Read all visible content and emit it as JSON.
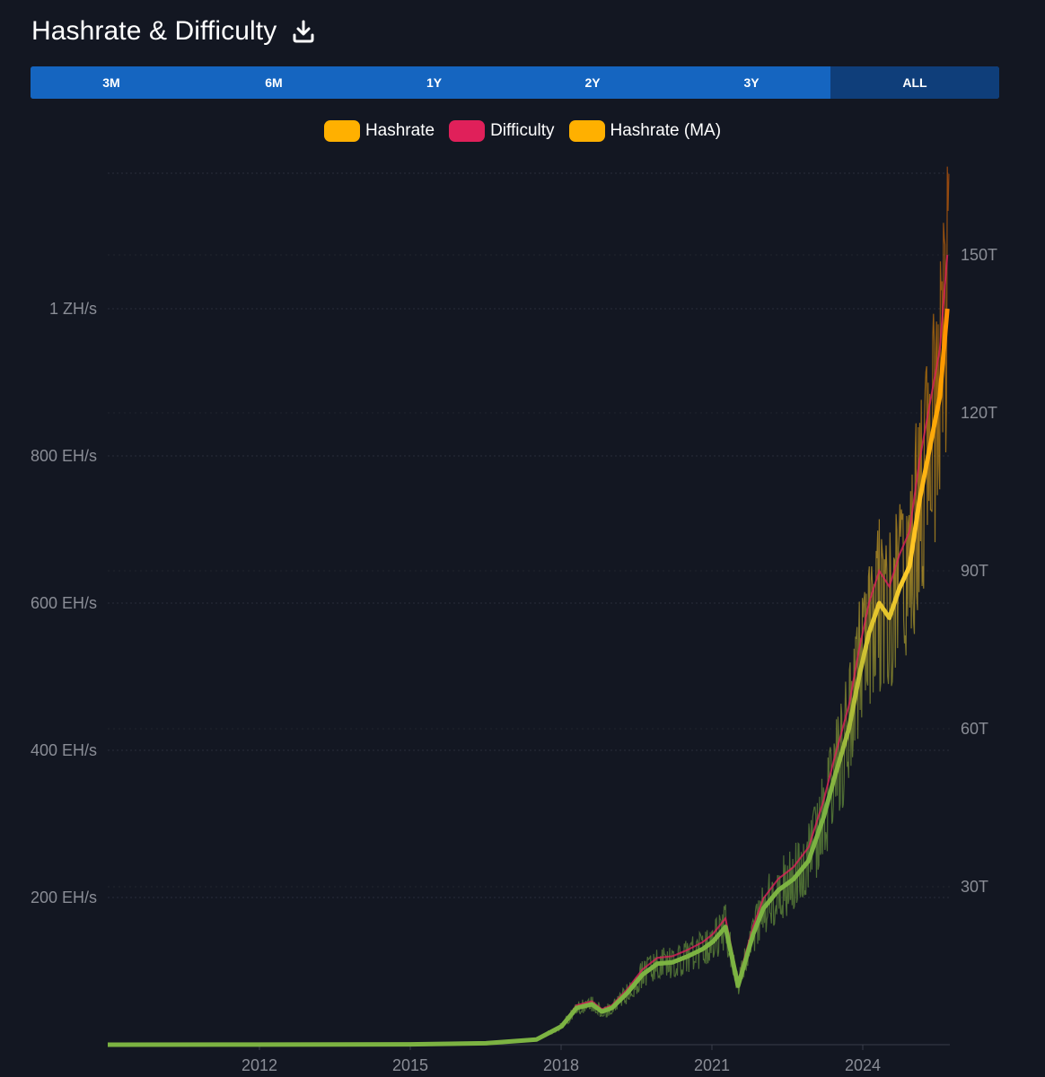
{
  "header": {
    "title": "Hashrate & Difficulty",
    "download_icon": "download-icon"
  },
  "ranges": [
    {
      "label": "3M",
      "active": false
    },
    {
      "label": "6M",
      "active": false
    },
    {
      "label": "1Y",
      "active": false
    },
    {
      "label": "2Y",
      "active": false
    },
    {
      "label": "3Y",
      "active": false
    },
    {
      "label": "ALL",
      "active": true
    }
  ],
  "legend": [
    {
      "label": "Hashrate",
      "color": "#ffb000"
    },
    {
      "label": "Difficulty",
      "color": "#e0205a"
    },
    {
      "label": "Hashrate (MA)",
      "color": "#ffb000"
    }
  ],
  "colors": {
    "background": "#131722",
    "button": "#1565c0",
    "button_active": "#0f3e7a",
    "low": "#7cb342",
    "mid": "#ffca28",
    "high": "#ff6f00",
    "difficulty": "#e0205a"
  },
  "chart_data": {
    "type": "line",
    "grid": true,
    "x_ticks": [
      "2012",
      "2015",
      "2018",
      "2021",
      "2024"
    ],
    "xlim": [
      2009.0,
      2025.7
    ],
    "y_left": {
      "ticks": [
        "200 EH/s",
        "400 EH/s",
        "600 EH/s",
        "800 EH/s",
        "1 ZH/s"
      ],
      "unit": "EH/s",
      "ylim": [
        0,
        1000
      ]
    },
    "y_right": {
      "ticks": [
        "30T",
        "60T",
        "90T",
        "120T",
        "150T"
      ],
      "unit": "T",
      "ylim": [
        0,
        150
      ]
    },
    "series": [
      {
        "name": "Hashrate (MA)",
        "axis": "left",
        "x": [
          2009.0,
          2012.0,
          2015.0,
          2016.5,
          2017.5,
          2018.0,
          2018.3,
          2018.6,
          2018.8,
          2019.0,
          2019.3,
          2019.6,
          2019.9,
          2020.2,
          2020.5,
          2020.8,
          2021.0,
          2021.25,
          2021.5,
          2021.8,
          2022.0,
          2022.3,
          2022.6,
          2022.9,
          2023.2,
          2023.4,
          2023.7,
          2023.9,
          2024.1,
          2024.3,
          2024.5,
          2024.7,
          2024.9,
          2025.1,
          2025.3,
          2025.5,
          2025.65
        ],
        "y": [
          0,
          0.1,
          0.5,
          2,
          7,
          25,
          50,
          55,
          45,
          50,
          70,
          95,
          110,
          112,
          120,
          130,
          140,
          160,
          80,
          150,
          185,
          210,
          225,
          250,
          310,
          360,
          430,
          500,
          560,
          600,
          580,
          620,
          650,
          740,
          810,
          880,
          1000
        ]
      },
      {
        "name": "Difficulty",
        "axis": "right",
        "x": [
          2009.0,
          2012.0,
          2015.0,
          2016.5,
          2017.5,
          2018.0,
          2018.3,
          2018.6,
          2018.8,
          2019.0,
          2019.3,
          2019.6,
          2019.9,
          2020.2,
          2020.5,
          2020.8,
          2021.0,
          2021.25,
          2021.5,
          2021.8,
          2022.0,
          2022.3,
          2022.6,
          2022.9,
          2023.2,
          2023.4,
          2023.7,
          2023.9,
          2024.1,
          2024.3,
          2024.5,
          2024.7,
          2024.9,
          2025.1,
          2025.3,
          2025.5,
          2025.65
        ],
        "y": [
          0,
          0.015,
          0.075,
          0.3,
          1.05,
          3.75,
          7.5,
          8.25,
          6.75,
          7.5,
          10.5,
          14.25,
          16.5,
          16.8,
          18,
          19.5,
          21,
          24,
          12,
          22.5,
          27.75,
          31.5,
          33.75,
          37.5,
          46.5,
          54,
          64.5,
          75,
          84,
          90,
          87,
          93,
          97.5,
          111,
          121.5,
          132,
          150
        ]
      }
    ]
  }
}
